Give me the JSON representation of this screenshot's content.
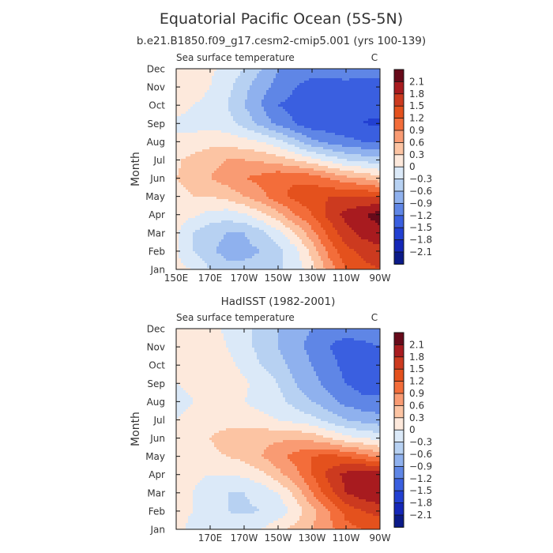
{
  "figure": {
    "title": "Equatorial Pacific Ocean (5S-5N)",
    "subtitle": "b.e21.B1850.f09_g17.cesm2-cmip5.001 (yrs 100-139)"
  },
  "chart_data": [
    {
      "type": "heatmap",
      "title": "",
      "panel_label_left": "Sea surface temperature",
      "panel_label_right": "C",
      "ylabel": "Month",
      "xlabel": "",
      "x_ticks": [
        "150E",
        "170E",
        "170W",
        "150W",
        "130W",
        "110W",
        "90W"
      ],
      "y_ticks": [
        "Jan",
        "Feb",
        "Mar",
        "Apr",
        "May",
        "Jun",
        "Jul",
        "Aug",
        "Sep",
        "Oct",
        "Nov",
        "Dec"
      ],
      "x_range_deg_east": [
        150,
        270
      ],
      "x_grid": [
        150,
        160,
        170,
        180,
        190,
        200,
        210,
        220,
        230,
        240,
        250,
        260,
        270
      ],
      "z": [
        [
          0.05,
          0.0,
          -0.3,
          -0.5,
          -0.5,
          -0.45,
          -0.35,
          -0.2,
          0.2,
          0.7,
          1.2,
          1.4,
          1.5
        ],
        [
          0.05,
          -0.3,
          -0.55,
          -0.7,
          -0.7,
          -0.6,
          -0.4,
          -0.1,
          0.4,
          1.0,
          1.4,
          1.6,
          1.7
        ],
        [
          0.05,
          -0.3,
          -0.5,
          -0.6,
          -0.6,
          -0.4,
          -0.1,
          0.3,
          0.8,
          1.3,
          1.7,
          1.9,
          2.0
        ],
        [
          0.1,
          0.05,
          -0.1,
          -0.15,
          -0.05,
          0.2,
          0.5,
          0.9,
          1.2,
          1.6,
          1.9,
          2.05,
          2.25
        ],
        [
          0.2,
          0.3,
          0.3,
          0.4,
          0.6,
          0.8,
          1.1,
          1.3,
          1.4,
          1.5,
          1.5,
          1.5,
          1.5
        ],
        [
          0.3,
          0.4,
          0.6,
          0.75,
          0.9,
          1.0,
          1.15,
          1.15,
          1.1,
          0.9,
          0.7,
          0.6,
          0.4
        ],
        [
          0.25,
          0.4,
          0.5,
          0.6,
          0.6,
          0.55,
          0.45,
          0.3,
          0.1,
          -0.1,
          -0.3,
          -0.4,
          -0.5
        ],
        [
          0.05,
          0.1,
          0.2,
          0.2,
          0.1,
          0.0,
          -0.2,
          -0.5,
          -0.8,
          -1.0,
          -1.1,
          -1.2,
          -1.2
        ],
        [
          -0.05,
          -0.1,
          -0.1,
          -0.2,
          -0.4,
          -0.7,
          -1.0,
          -1.2,
          -1.4,
          -1.4,
          -1.45,
          -1.5,
          -1.55
        ],
        [
          0.1,
          0.0,
          -0.1,
          -0.3,
          -0.6,
          -0.9,
          -1.2,
          -1.3,
          -1.4,
          -1.4,
          -1.4,
          -1.45,
          -1.4
        ],
        [
          0.2,
          0.15,
          0.0,
          -0.2,
          -0.5,
          -0.8,
          -1.0,
          -1.2,
          -1.3,
          -1.3,
          -1.3,
          -1.3,
          -1.3
        ],
        [
          0.2,
          0.15,
          0.05,
          -0.1,
          -0.3,
          -0.6,
          -0.9,
          -1.0,
          -1.1,
          -1.1,
          -1.05,
          -1.1,
          -1.1
        ]
      ]
    },
    {
      "type": "heatmap",
      "title": "HadISST (1982-2001)",
      "panel_label_left": "Sea surface temperature",
      "panel_label_right": "C",
      "ylabel": "Month",
      "xlabel": "",
      "x_ticks": [
        "170E",
        "170W",
        "150W",
        "130W",
        "110W",
        "90W"
      ],
      "y_ticks": [
        "Jan",
        "Feb",
        "Mar",
        "Apr",
        "May",
        "Jun",
        "Jul",
        "Aug",
        "Sep",
        "Oct",
        "Nov",
        "Dec"
      ],
      "x_range_deg_east": [
        150,
        270
      ],
      "x_grid": [
        150,
        160,
        170,
        180,
        190,
        200,
        210,
        220,
        230,
        240,
        250,
        260,
        270
      ],
      "z": [
        [
          0.05,
          -0.05,
          -0.1,
          -0.15,
          -0.1,
          0.0,
          0.2,
          0.4,
          0.6,
          0.8,
          1.1,
          1.2,
          1.3
        ],
        [
          0.05,
          0.0,
          -0.2,
          -0.3,
          -0.35,
          -0.3,
          -0.2,
          0.1,
          0.5,
          0.9,
          1.3,
          1.5,
          1.6
        ],
        [
          0.05,
          0.0,
          -0.15,
          -0.3,
          -0.3,
          -0.2,
          0.0,
          0.4,
          0.9,
          1.4,
          1.8,
          2.0,
          2.1
        ],
        [
          0.1,
          0.05,
          0.0,
          0.0,
          0.05,
          0.2,
          0.5,
          0.8,
          1.2,
          1.6,
          1.9,
          2.1,
          2.0
        ],
        [
          0.15,
          0.2,
          0.25,
          0.3,
          0.4,
          0.6,
          0.8,
          1.0,
          1.2,
          1.3,
          1.2,
          1.0,
          0.8
        ],
        [
          0.1,
          0.2,
          0.3,
          0.4,
          0.45,
          0.5,
          0.55,
          0.55,
          0.5,
          0.3,
          0.1,
          0.0,
          -0.1
        ],
        [
          0.0,
          0.1,
          0.2,
          0.2,
          0.15,
          0.1,
          0.0,
          -0.1,
          -0.2,
          -0.4,
          -0.6,
          -0.7,
          -0.8
        ],
        [
          -0.1,
          0.0,
          0.1,
          0.1,
          0.0,
          -0.1,
          -0.2,
          -0.4,
          -0.6,
          -0.8,
          -1.0,
          -1.1,
          -1.1
        ],
        [
          0.0,
          0.05,
          0.2,
          0.3,
          0.05,
          -0.1,
          -0.3,
          -0.6,
          -0.8,
          -1.0,
          -1.2,
          -1.35,
          -1.35
        ],
        [
          0.05,
          0.1,
          0.2,
          0.1,
          -0.1,
          -0.3,
          -0.5,
          -0.7,
          -0.9,
          -1.1,
          -1.3,
          -1.35,
          -1.3
        ],
        [
          0.1,
          0.1,
          0.1,
          0.0,
          -0.2,
          -0.4,
          -0.6,
          -0.8,
          -1.0,
          -1.2,
          -1.3,
          -1.3,
          -1.2
        ],
        [
          0.05,
          0.05,
          0.1,
          -0.05,
          -0.2,
          -0.4,
          -0.6,
          -0.8,
          -0.9,
          -1.1,
          -1.1,
          -1.0,
          -1.0
        ]
      ]
    }
  ],
  "colorbar": {
    "labels": [
      "2.1",
      "1.8",
      "1.5",
      "1.2",
      "0.9",
      "0.6",
      "0.3",
      "0",
      "−0.3",
      "−0.6",
      "−0.9",
      "−1.2",
      "−1.5",
      "−1.8",
      "−2.1"
    ],
    "level_values": [
      2.1,
      1.8,
      1.5,
      1.2,
      0.9,
      0.6,
      0.3,
      0,
      -0.3,
      -0.6,
      -0.9,
      -1.2,
      -1.5,
      -1.8,
      -2.1
    ],
    "colors": [
      "#670a1a",
      "#a81b1f",
      "#cc3a1f",
      "#e4511d",
      "#f36d3a",
      "#f99b73",
      "#fcc4a3",
      "#fde9dc",
      "#dbe9f8",
      "#b7d1f2",
      "#8fb1ee",
      "#5f86e6",
      "#3a5fe0",
      "#2240d2",
      "#1527b8",
      "#0b1a88"
    ]
  }
}
